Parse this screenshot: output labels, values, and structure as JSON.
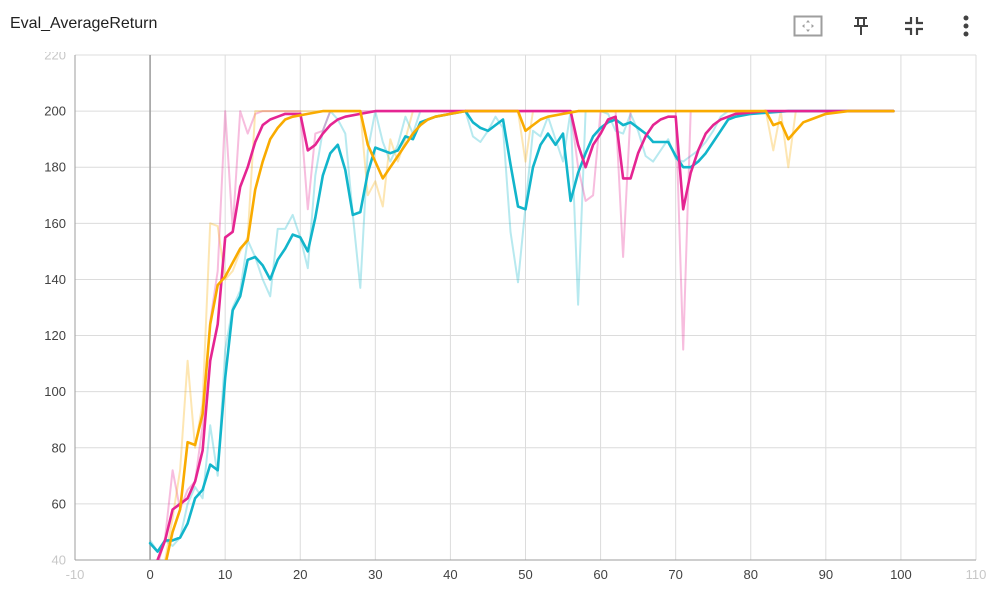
{
  "header": {
    "title": "Eval_AverageReturn",
    "icons": [
      "fit-domain-icon",
      "pin-icon",
      "collapse-icon",
      "more-vert-icon"
    ]
  },
  "colors": {
    "grid": "#dcdcdc",
    "axis": "#9e9e9e",
    "zero_line": "#a0a0a0",
    "series_cyan": "#12b5cb",
    "series_pink": "#e52592",
    "series_yellow": "#f9ab00"
  },
  "chart_data": {
    "type": "line",
    "title": "Eval_AverageReturn",
    "xlabel": "",
    "ylabel": "",
    "xlim": [
      -10,
      110
    ],
    "ylim": [
      40,
      220
    ],
    "xticks": [
      -10,
      0,
      10,
      20,
      30,
      40,
      50,
      60,
      70,
      80,
      90,
      100,
      110
    ],
    "yticks": [
      40,
      60,
      80,
      100,
      120,
      140,
      160,
      180,
      200,
      220
    ],
    "grid": true,
    "legend": "none",
    "series": [
      {
        "color": "#12b5cb",
        "raw": [
          [
            0,
            47
          ],
          [
            1,
            43
          ],
          [
            2,
            47
          ],
          [
            3,
            45
          ],
          [
            4,
            48
          ],
          [
            5,
            60
          ],
          [
            6,
            66
          ],
          [
            7,
            62
          ],
          [
            8,
            88
          ],
          [
            9,
            70
          ],
          [
            10,
            115
          ],
          [
            11,
            130
          ],
          [
            12,
            136
          ],
          [
            13,
            154
          ],
          [
            14,
            148
          ],
          [
            15,
            140
          ],
          [
            16,
            134
          ],
          [
            17,
            158
          ],
          [
            18,
            158
          ],
          [
            19,
            163
          ],
          [
            20,
            155
          ],
          [
            21,
            144
          ],
          [
            22,
            177
          ],
          [
            23,
            193
          ],
          [
            24,
            200
          ],
          [
            25,
            197
          ],
          [
            26,
            192
          ],
          [
            27,
            163
          ],
          [
            28,
            137
          ],
          [
            29,
            186
          ],
          [
            30,
            200
          ],
          [
            31,
            189
          ],
          [
            32,
            182
          ],
          [
            33,
            188
          ],
          [
            34,
            198
          ],
          [
            35,
            192
          ],
          [
            36,
            200
          ],
          [
            38,
            200
          ],
          [
            42,
            200
          ],
          [
            43,
            191
          ],
          [
            44,
            189
          ],
          [
            45,
            193
          ],
          [
            46,
            198
          ],
          [
            47,
            194
          ],
          [
            48,
            157
          ],
          [
            49,
            139
          ],
          [
            50,
            166
          ],
          [
            51,
            193
          ],
          [
            52,
            191
          ],
          [
            53,
            198
          ],
          [
            54,
            190
          ],
          [
            55,
            182
          ],
          [
            56,
            200
          ],
          [
            57,
            131
          ],
          [
            58,
            200
          ],
          [
            59,
            200
          ],
          [
            60,
            200
          ],
          [
            61,
            199
          ],
          [
            62,
            193
          ],
          [
            63,
            192
          ],
          [
            64,
            199
          ],
          [
            65,
            193
          ],
          [
            66,
            184
          ],
          [
            67,
            182
          ],
          [
            68,
            186
          ],
          [
            69,
            190
          ],
          [
            70,
            183
          ],
          [
            71,
            182
          ],
          [
            72,
            184
          ],
          [
            73,
            186
          ],
          [
            74,
            189
          ],
          [
            75,
            193
          ],
          [
            76,
            198
          ],
          [
            77,
            200
          ],
          [
            80,
            200
          ],
          [
            99,
            200
          ]
        ],
        "smoothed": [
          [
            0,
            46
          ],
          [
            1,
            43
          ],
          [
            2,
            47
          ],
          [
            3,
            47
          ],
          [
            4,
            48
          ],
          [
            5,
            53
          ],
          [
            6,
            62
          ],
          [
            7,
            65
          ],
          [
            8,
            74
          ],
          [
            9,
            72
          ],
          [
            10,
            105
          ],
          [
            11,
            129
          ],
          [
            12,
            134
          ],
          [
            13,
            147
          ],
          [
            14,
            148
          ],
          [
            15,
            145
          ],
          [
            16,
            140
          ],
          [
            17,
            147
          ],
          [
            18,
            151
          ],
          [
            19,
            156
          ],
          [
            20,
            155
          ],
          [
            21,
            150
          ],
          [
            22,
            162
          ],
          [
            23,
            177
          ],
          [
            24,
            185
          ],
          [
            25,
            188
          ],
          [
            26,
            179
          ],
          [
            27,
            163
          ],
          [
            28,
            164
          ],
          [
            29,
            178
          ],
          [
            30,
            187
          ],
          [
            31,
            186
          ],
          [
            32,
            185
          ],
          [
            33,
            186
          ],
          [
            34,
            191
          ],
          [
            35,
            190
          ],
          [
            36,
            196
          ],
          [
            38,
            198
          ],
          [
            40,
            199
          ],
          [
            42,
            200
          ],
          [
            43,
            196
          ],
          [
            44,
            194
          ],
          [
            45,
            193
          ],
          [
            46,
            195
          ],
          [
            47,
            197
          ],
          [
            48,
            181
          ],
          [
            49,
            166
          ],
          [
            50,
            165
          ],
          [
            51,
            180
          ],
          [
            52,
            188
          ],
          [
            53,
            192
          ],
          [
            54,
            188
          ],
          [
            55,
            192
          ],
          [
            56,
            168
          ],
          [
            57,
            178
          ],
          [
            58,
            185
          ],
          [
            59,
            191
          ],
          [
            60,
            194
          ],
          [
            61,
            196
          ],
          [
            62,
            197
          ],
          [
            63,
            195
          ],
          [
            64,
            196
          ],
          [
            65,
            194
          ],
          [
            66,
            192
          ],
          [
            67,
            189
          ],
          [
            68,
            189
          ],
          [
            69,
            189
          ],
          [
            70,
            184
          ],
          [
            71,
            180
          ],
          [
            72,
            180
          ],
          [
            73,
            182
          ],
          [
            74,
            185
          ],
          [
            75,
            189
          ],
          [
            76,
            193
          ],
          [
            77,
            197
          ],
          [
            78,
            198
          ],
          [
            80,
            199
          ],
          [
            85,
            200
          ],
          [
            99,
            200
          ]
        ]
      },
      {
        "color": "#e52592",
        "raw": [
          [
            1,
            38
          ],
          [
            2,
            48
          ],
          [
            3,
            72
          ],
          [
            4,
            58
          ],
          [
            5,
            65
          ],
          [
            6,
            68
          ],
          [
            7,
            88
          ],
          [
            8,
            125
          ],
          [
            9,
            143
          ],
          [
            10,
            200
          ],
          [
            11,
            158
          ],
          [
            12,
            200
          ],
          [
            13,
            192
          ],
          [
            14,
            199
          ],
          [
            15,
            200
          ],
          [
            20,
            200
          ],
          [
            21,
            165
          ],
          [
            22,
            192
          ],
          [
            23,
            193
          ],
          [
            24,
            200
          ],
          [
            27,
            200
          ],
          [
            28,
            200
          ],
          [
            42,
            200
          ],
          [
            56,
            200
          ],
          [
            57,
            180
          ],
          [
            58,
            168
          ],
          [
            59,
            170
          ],
          [
            60,
            200
          ],
          [
            62,
            200
          ],
          [
            63,
            148
          ],
          [
            64,
            200
          ],
          [
            70,
            200
          ],
          [
            71,
            115
          ],
          [
            72,
            200
          ],
          [
            82,
            200
          ],
          [
            99,
            200
          ]
        ],
        "smoothed": [
          [
            1,
            40
          ],
          [
            2,
            47
          ],
          [
            3,
            58
          ],
          [
            4,
            60
          ],
          [
            5,
            62
          ],
          [
            6,
            68
          ],
          [
            7,
            79
          ],
          [
            8,
            111
          ],
          [
            9,
            124
          ],
          [
            10,
            155
          ],
          [
            11,
            157
          ],
          [
            12,
            173
          ],
          [
            13,
            180
          ],
          [
            14,
            189
          ],
          [
            15,
            195
          ],
          [
            16,
            197
          ],
          [
            17,
            198
          ],
          [
            18,
            199
          ],
          [
            20,
            199
          ],
          [
            21,
            186
          ],
          [
            22,
            188
          ],
          [
            23,
            192
          ],
          [
            24,
            195
          ],
          [
            25,
            197
          ],
          [
            26,
            198
          ],
          [
            28,
            199
          ],
          [
            30,
            200
          ],
          [
            42,
            200
          ],
          [
            56,
            200
          ],
          [
            57,
            188
          ],
          [
            58,
            180
          ],
          [
            59,
            188
          ],
          [
            60,
            192
          ],
          [
            61,
            197
          ],
          [
            62,
            198
          ],
          [
            63,
            176
          ],
          [
            64,
            176
          ],
          [
            65,
            185
          ],
          [
            66,
            191
          ],
          [
            67,
            195
          ],
          [
            68,
            197
          ],
          [
            69,
            198
          ],
          [
            70,
            198
          ],
          [
            71,
            165
          ],
          [
            72,
            178
          ],
          [
            73,
            186
          ],
          [
            74,
            192
          ],
          [
            75,
            195
          ],
          [
            76,
            197
          ],
          [
            77,
            198
          ],
          [
            78,
            199
          ],
          [
            82,
            200
          ],
          [
            99,
            200
          ]
        ]
      },
      {
        "color": "#f9ab00",
        "raw": [
          [
            2,
            40
          ],
          [
            3,
            55
          ],
          [
            4,
            72
          ],
          [
            5,
            111
          ],
          [
            6,
            80
          ],
          [
            7,
            96
          ],
          [
            8,
            160
          ],
          [
            9,
            159
          ],
          [
            10,
            140
          ],
          [
            11,
            143
          ],
          [
            12,
            150
          ],
          [
            13,
            155
          ],
          [
            14,
            200
          ],
          [
            15,
            200
          ],
          [
            28,
            200
          ],
          [
            29,
            170
          ],
          [
            30,
            175
          ],
          [
            31,
            166
          ],
          [
            32,
            190
          ],
          [
            33,
            182
          ],
          [
            34,
            190
          ],
          [
            35,
            200
          ],
          [
            48,
            200
          ],
          [
            49,
            200
          ],
          [
            50,
            182
          ],
          [
            51,
            200
          ],
          [
            62,
            200
          ],
          [
            63,
            200
          ],
          [
            82,
            200
          ],
          [
            83,
            186
          ],
          [
            84,
            200
          ],
          [
            85,
            180
          ],
          [
            86,
            200
          ],
          [
            99,
            200
          ]
        ],
        "smoothed": [
          [
            2,
            38
          ],
          [
            3,
            50
          ],
          [
            4,
            58
          ],
          [
            5,
            82
          ],
          [
            6,
            81
          ],
          [
            7,
            92
          ],
          [
            8,
            124
          ],
          [
            9,
            138
          ],
          [
            10,
            141
          ],
          [
            11,
            146
          ],
          [
            12,
            151
          ],
          [
            13,
            154
          ],
          [
            14,
            172
          ],
          [
            15,
            182
          ],
          [
            16,
            190
          ],
          [
            17,
            194
          ],
          [
            18,
            197
          ],
          [
            19,
            198
          ],
          [
            21,
            199
          ],
          [
            23,
            200
          ],
          [
            28,
            200
          ],
          [
            29,
            188
          ],
          [
            30,
            182
          ],
          [
            31,
            176
          ],
          [
            32,
            180
          ],
          [
            33,
            184
          ],
          [
            34,
            188
          ],
          [
            35,
            192
          ],
          [
            36,
            195
          ],
          [
            37,
            197
          ],
          [
            38,
            198
          ],
          [
            40,
            199
          ],
          [
            42,
            200
          ],
          [
            49,
            200
          ],
          [
            50,
            193
          ],
          [
            51,
            195
          ],
          [
            52,
            197
          ],
          [
            53,
            198
          ],
          [
            55,
            199
          ],
          [
            57,
            200
          ],
          [
            63,
            200
          ],
          [
            82,
            200
          ],
          [
            83,
            195
          ],
          [
            84,
            196
          ],
          [
            85,
            190
          ],
          [
            86,
            193
          ],
          [
            87,
            196
          ],
          [
            88,
            197
          ],
          [
            90,
            199
          ],
          [
            93,
            200
          ],
          [
            99,
            200
          ]
        ]
      }
    ]
  }
}
